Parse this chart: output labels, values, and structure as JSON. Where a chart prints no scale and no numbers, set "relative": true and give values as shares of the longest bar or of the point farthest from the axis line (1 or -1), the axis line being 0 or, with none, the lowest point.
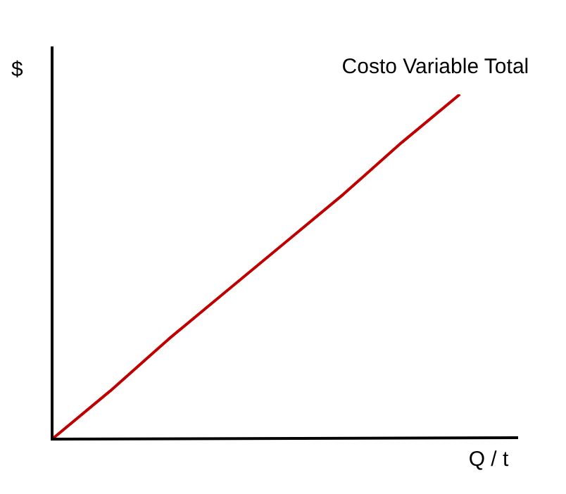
{
  "chart_data": {
    "type": "line",
    "xlabel": "Q / t",
    "ylabel": "$",
    "relative": true,
    "categories": [
      null,
      null,
      null,
      null,
      null,
      null,
      null,
      null,
      null
    ],
    "series": [
      {
        "name": "Costo Variable Total",
        "color": "#c00000",
        "values": [
          0,
          0.14,
          0.29,
          0.43,
          0.57,
          0.71,
          0.86,
          1,
          null
        ]
      }
    ]
  }
}
